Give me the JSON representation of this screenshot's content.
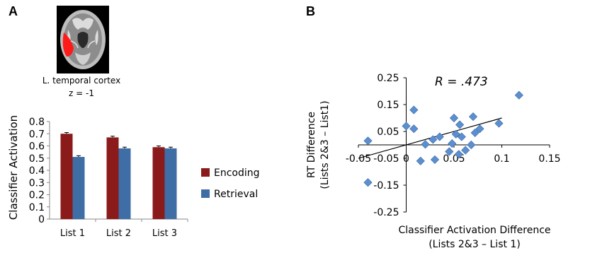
{
  "panel_a": {
    "label": "A",
    "brain_caption": [
      "L. temporal cortex",
      "z = -1"
    ]
  },
  "panel_b": {
    "label": "B"
  },
  "colors": {
    "encoding": "#8b1a1a",
    "retrieval": "#3f6ea7",
    "scatter_point": "#5b8fd0",
    "brain_highlight": "#ff1a1a"
  },
  "chart_data": [
    {
      "type": "bar",
      "title": "",
      "ylabel": "Classifier Activation",
      "xlabel": "",
      "categories": [
        "List 1",
        "List 2",
        "List 3"
      ],
      "series": [
        {
          "name": "Encoding",
          "values": [
            0.7,
            0.67,
            0.59
          ],
          "errors": [
            0.01,
            0.01,
            0.01
          ]
        },
        {
          "name": "Retrieval",
          "values": [
            0.51,
            0.58,
            0.58
          ],
          "errors": [
            0.01,
            0.01,
            0.01
          ]
        }
      ],
      "ylim": [
        0,
        0.8
      ],
      "yticks": [
        "0",
        "0.1",
        "0.2",
        "0.3",
        "0.4",
        "0.5",
        "0.6",
        "0.7",
        "0.8"
      ],
      "legend": "right"
    },
    {
      "type": "scatter",
      "annotation": "R = .473",
      "xlabel": [
        "Classifier Activation Difference",
        "(Lists 2&3 – List 1)"
      ],
      "ylabel": [
        "RT Difference",
        "(Lists 2&3 – List1)"
      ],
      "xlim": [
        -0.05,
        0.15
      ],
      "ylim": [
        -0.25,
        0.25
      ],
      "xticks": [
        "-0.05",
        "0",
        "0.05",
        "0.1",
        "0.15"
      ],
      "yticks": [
        "0.25",
        "0.15",
        "0.05",
        "-0.05",
        "-0.15",
        "-0.25"
      ],
      "points": [
        [
          -0.04,
          0.015
        ],
        [
          0.008,
          0.13
        ],
        [
          0.008,
          0.06
        ],
        [
          0.015,
          -0.06
        ],
        [
          0.02,
          0.002
        ],
        [
          0.03,
          -0.055
        ],
        [
          0.028,
          0.02
        ],
        [
          0.035,
          0.03
        ],
        [
          0.045,
          -0.025
        ],
        [
          0.048,
          0.005
        ],
        [
          0.05,
          0.1
        ],
        [
          0.052,
          0.04
        ],
        [
          0.055,
          -0.035
        ],
        [
          0.056,
          0.075
        ],
        [
          0.058,
          0.03
        ],
        [
          0.062,
          -0.02
        ],
        [
          0.068,
          0.0
        ],
        [
          0.07,
          0.105
        ],
        [
          0.072,
          0.045
        ],
        [
          0.077,
          0.06
        ],
        [
          0.097,
          0.08
        ],
        [
          0.118,
          0.185
        ],
        [
          -0.04,
          -0.14
        ],
        [
          0.0,
          0.07
        ]
      ],
      "trendline": {
        "x": [
          -0.05,
          0.1
        ],
        "y": [
          -0.05,
          0.1
        ]
      }
    }
  ]
}
